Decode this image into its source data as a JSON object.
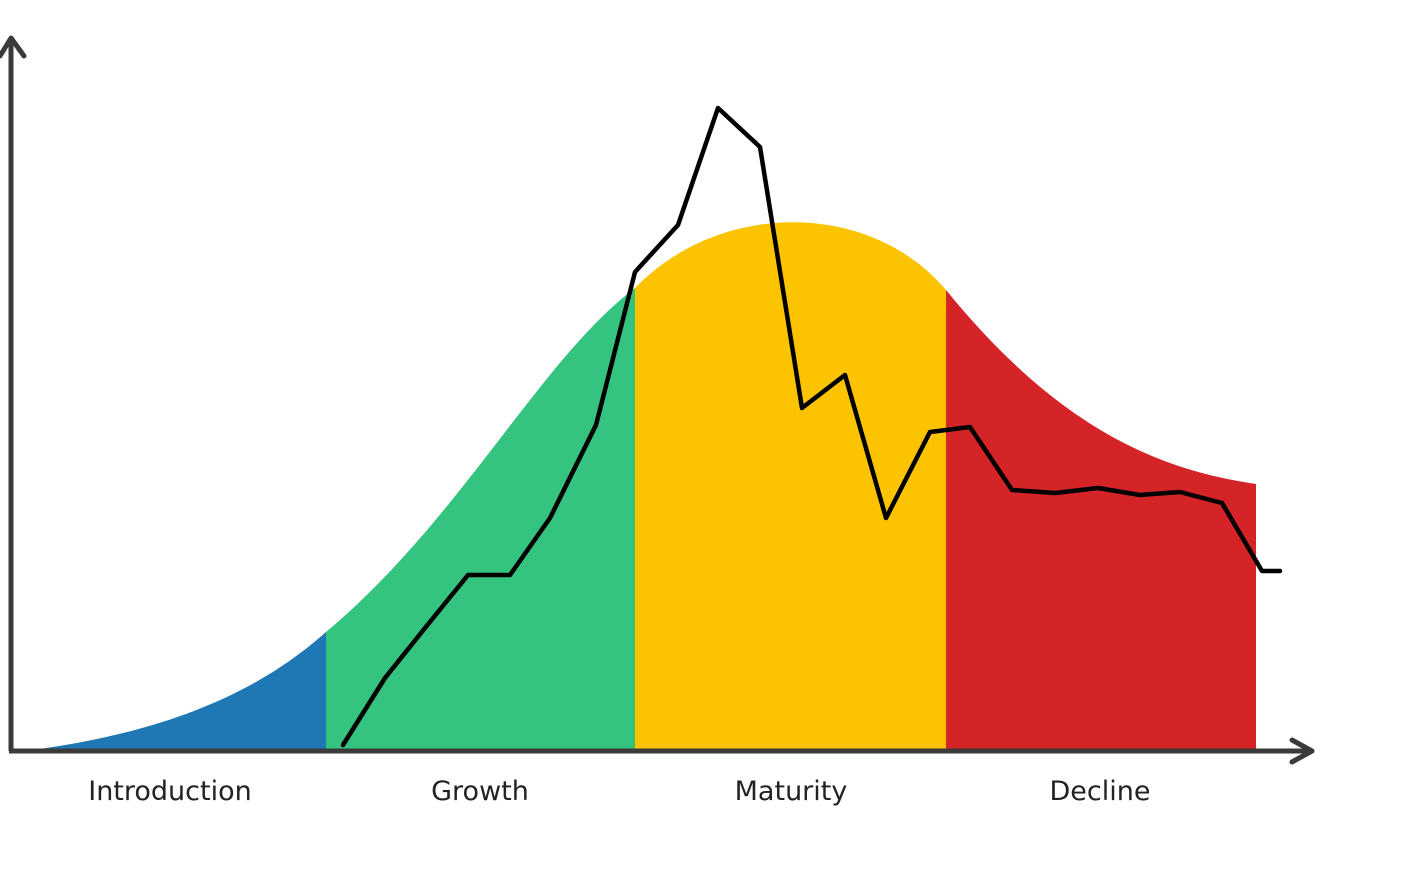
{
  "diagram": {
    "phases": [
      {
        "label": "Introduction",
        "color": "#1f77b4"
      },
      {
        "label": "Growth",
        "color": "#34c47f"
      },
      {
        "label": "Maturity",
        "color": "#fcc400"
      },
      {
        "label": "Decline",
        "color": "#d42428"
      }
    ],
    "axis_color": "#3a3a3a",
    "line_color": "#000000"
  }
}
